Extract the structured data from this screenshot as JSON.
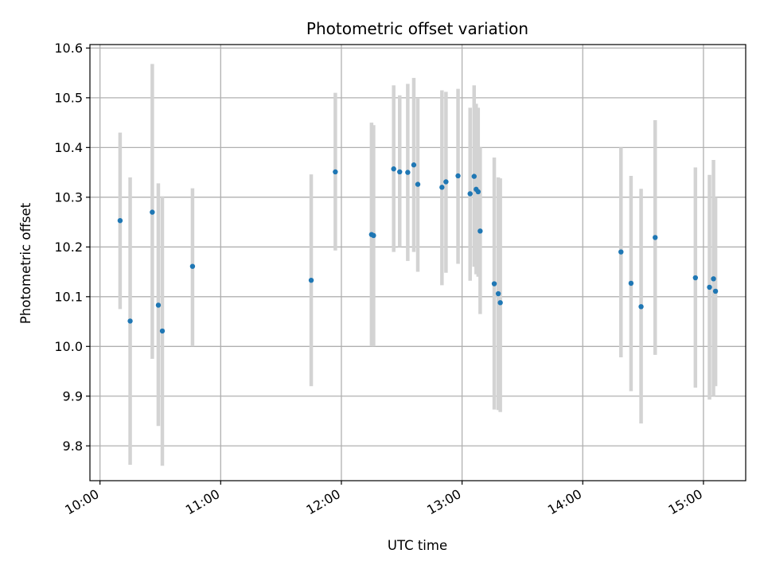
{
  "chart_data": {
    "type": "scatter",
    "title": "Photometric offset variation",
    "xlabel": "UTC time",
    "ylabel": "Photometric offset",
    "grid": true,
    "x_tick_labels": [
      "10:00",
      "11:00",
      "12:00",
      "13:00",
      "14:00",
      "15:00"
    ],
    "y_tick_labels": [
      "9.8",
      "9.9",
      "10.0",
      "10.1",
      "10.2",
      "10.3",
      "10.4",
      "10.5",
      "10.6"
    ],
    "xlim": [
      "09:55",
      "15:21"
    ],
    "ylim": [
      9.73,
      10.607
    ],
    "colors": {
      "point": "#1f77b4",
      "error_bar": "#d3d3d3",
      "grid": "#b0b0b0"
    },
    "points": [
      {
        "t": "10:10",
        "y": 10.253,
        "lo": 10.075,
        "hi": 10.43
      },
      {
        "t": "10:15",
        "y": 10.051,
        "lo": 9.762,
        "hi": 10.34
      },
      {
        "t": "10:26",
        "y": 10.27,
        "lo": 9.975,
        "hi": 10.568
      },
      {
        "t": "10:29",
        "y": 10.083,
        "lo": 9.84,
        "hi": 10.328
      },
      {
        "t": "10:31",
        "y": 10.031,
        "lo": 9.76,
        "hi": 10.302
      },
      {
        "t": "10:46",
        "y": 10.161,
        "lo": 10.0,
        "hi": 10.318
      },
      {
        "t": "11:45",
        "y": 10.133,
        "lo": 9.92,
        "hi": 10.346
      },
      {
        "t": "11:57",
        "y": 10.351,
        "lo": 10.193,
        "hi": 10.51
      },
      {
        "t": "12:15",
        "y": 10.225,
        "lo": 10.0,
        "hi": 10.45
      },
      {
        "t": "12:16",
        "y": 10.223,
        "lo": 10.0,
        "hi": 10.445
      },
      {
        "t": "12:26",
        "y": 10.357,
        "lo": 10.19,
        "hi": 10.525
      },
      {
        "t": "12:29",
        "y": 10.351,
        "lo": 10.2,
        "hi": 10.505
      },
      {
        "t": "12:33",
        "y": 10.35,
        "lo": 10.172,
        "hi": 10.528
      },
      {
        "t": "12:36",
        "y": 10.365,
        "lo": 10.19,
        "hi": 10.54
      },
      {
        "t": "12:38",
        "y": 10.326,
        "lo": 10.15,
        "hi": 10.5
      },
      {
        "t": "12:50",
        "y": 10.32,
        "lo": 10.123,
        "hi": 10.515
      },
      {
        "t": "12:52",
        "y": 10.331,
        "lo": 10.148,
        "hi": 10.512
      },
      {
        "t": "12:58",
        "y": 10.343,
        "lo": 10.166,
        "hi": 10.518
      },
      {
        "t": "13:04",
        "y": 10.307,
        "lo": 10.132,
        "hi": 10.48
      },
      {
        "t": "13:06",
        "y": 10.342,
        "lo": 10.16,
        "hi": 10.525
      },
      {
        "t": "13:07",
        "y": 10.316,
        "lo": 10.145,
        "hi": 10.488
      },
      {
        "t": "13:08",
        "y": 10.311,
        "lo": 10.14,
        "hi": 10.48
      },
      {
        "t": "13:09",
        "y": 10.232,
        "lo": 10.065,
        "hi": 10.4
      },
      {
        "t": "13:16",
        "y": 10.126,
        "lo": 9.873,
        "hi": 10.38
      },
      {
        "t": "13:18",
        "y": 10.106,
        "lo": 9.872,
        "hi": 10.34
      },
      {
        "t": "13:19",
        "y": 10.088,
        "lo": 9.868,
        "hi": 10.338
      },
      {
        "t": "14:19",
        "y": 10.19,
        "lo": 9.978,
        "hi": 10.4
      },
      {
        "t": "14:24",
        "y": 10.127,
        "lo": 9.91,
        "hi": 10.343
      },
      {
        "t": "14:29",
        "y": 10.08,
        "lo": 9.845,
        "hi": 10.317
      },
      {
        "t": "14:36",
        "y": 10.219,
        "lo": 9.983,
        "hi": 10.455
      },
      {
        "t": "14:56",
        "y": 10.138,
        "lo": 9.917,
        "hi": 10.36
      },
      {
        "t": "15:03",
        "y": 10.119,
        "lo": 9.893,
        "hi": 10.345
      },
      {
        "t": "15:05",
        "y": 10.136,
        "lo": 9.9,
        "hi": 10.375
      },
      {
        "t": "15:06",
        "y": 10.111,
        "lo": 9.92,
        "hi": 10.3
      }
    ]
  }
}
